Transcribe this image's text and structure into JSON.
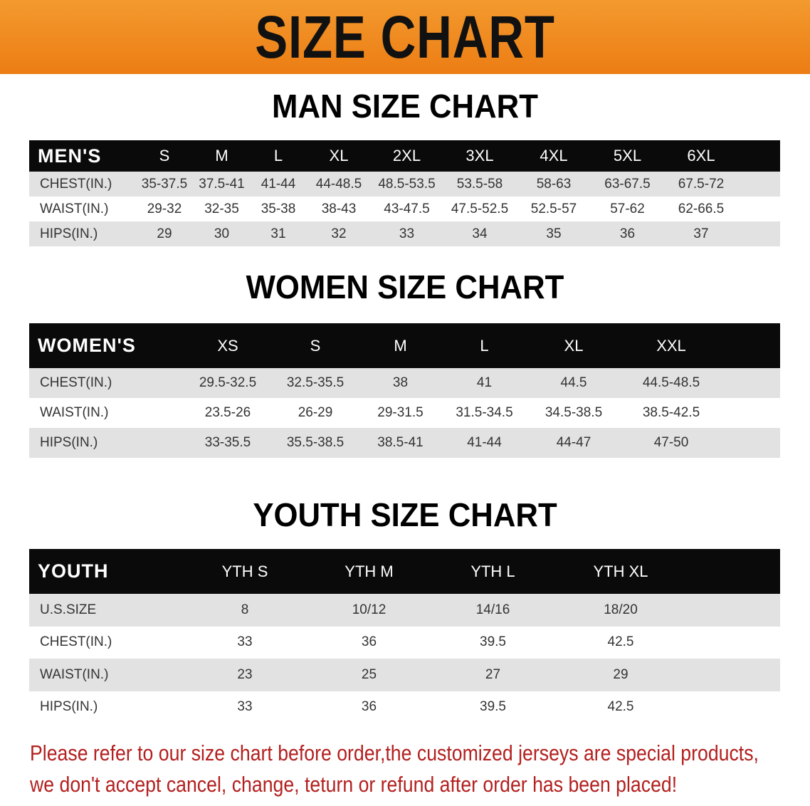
{
  "title": "SIZE CHART",
  "men": {
    "title": "MAN SIZE CHART",
    "header": [
      "MEN'S",
      "S",
      "M",
      "L",
      "XL",
      "2XL",
      "3XL",
      "4XL",
      "5XL",
      "6XL"
    ],
    "rows": [
      [
        "CHEST(IN.)",
        "35-37.5",
        "37.5-41",
        "41-44",
        "44-48.5",
        "48.5-53.5",
        "53.5-58",
        "58-63",
        "63-67.5",
        "67.5-72"
      ],
      [
        "WAIST(IN.)",
        "29-32",
        "32-35",
        "35-38",
        "38-43",
        "43-47.5",
        "47.5-52.5",
        "52.5-57",
        "57-62",
        "62-66.5"
      ],
      [
        "HIPS(IN.)",
        "29",
        "30",
        "31",
        "32",
        "33",
        "34",
        "35",
        "36",
        "37"
      ]
    ]
  },
  "women": {
    "title": "WOMEN SIZE CHART",
    "header": [
      "WOMEN'S",
      "XS",
      "S",
      "M",
      "L",
      "XL",
      "XXL"
    ],
    "rows": [
      [
        "CHEST(IN.)",
        "29.5-32.5",
        "32.5-35.5",
        "38",
        "41",
        "44.5",
        "44.5-48.5"
      ],
      [
        "WAIST(IN.)",
        "23.5-26",
        "26-29",
        "29-31.5",
        "31.5-34.5",
        "34.5-38.5",
        "38.5-42.5"
      ],
      [
        "HIPS(IN.)",
        "33-35.5",
        "35.5-38.5",
        "38.5-41",
        "41-44",
        "44-47",
        "47-50"
      ]
    ]
  },
  "youth": {
    "title": "YOUTH SIZE CHART",
    "header": [
      "YOUTH",
      "YTH S",
      "YTH M",
      "YTH L",
      "YTH XL"
    ],
    "rows": [
      [
        "U.S.SIZE",
        "8",
        "10/12",
        "14/16",
        "18/20"
      ],
      [
        "CHEST(IN.)",
        "33",
        "36",
        "39.5",
        "42.5"
      ],
      [
        "WAIST(IN.)",
        "23",
        "25",
        "27",
        "29"
      ],
      [
        "HIPS(IN.)",
        "33",
        "36",
        "39.5",
        "42.5"
      ]
    ]
  },
  "note": [
    "Please refer to our size chart before order,the customized jerseys are special products,",
    "we don't accept cancel, change, teturn or refund after order has been placed!"
  ],
  "colors": {
    "banner": "#ec7d14",
    "header_row": "#0a0a0a",
    "stripe": "#e2e2e2",
    "note": "#b3201f"
  }
}
